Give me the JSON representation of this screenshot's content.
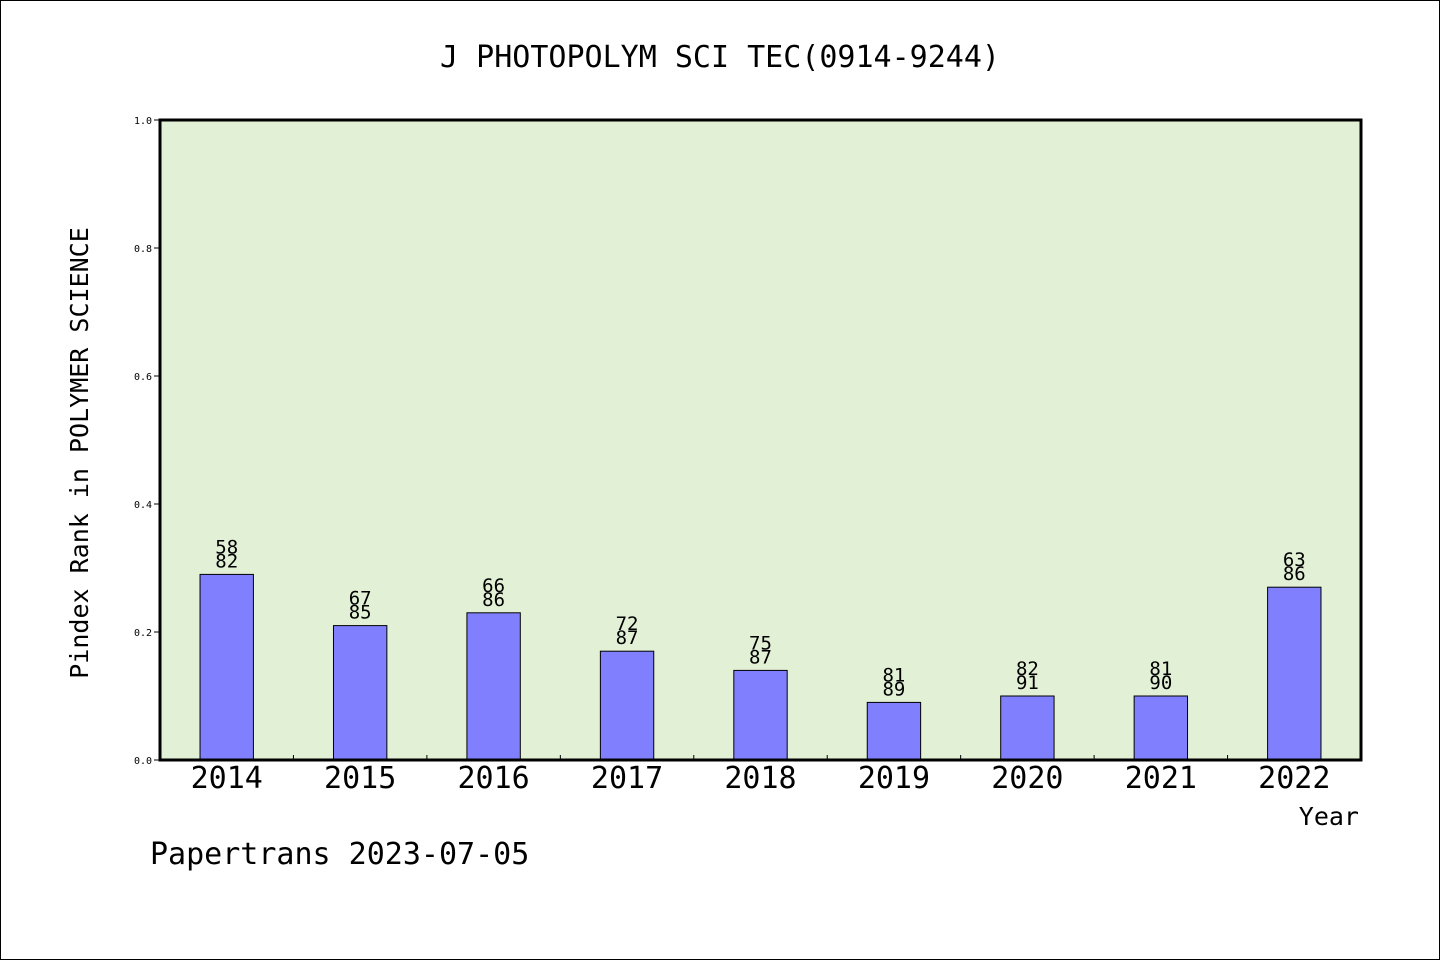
{
  "chart_data": {
    "type": "bar",
    "title": "J PHOTOPOLYM SCI TEC(0914-9244)",
    "xlabel": "Year",
    "ylabel": "Pindex Rank in POLYMER SCIENCE",
    "ylim": [
      0,
      1.0
    ],
    "yticks": [
      "0.0",
      "0.2",
      "0.4",
      "0.6",
      "0.8",
      "1.0"
    ],
    "categories": [
      "2014",
      "2015",
      "2016",
      "2017",
      "2018",
      "2019",
      "2020",
      "2021",
      "2022"
    ],
    "values": [
      0.29,
      0.21,
      0.23,
      0.17,
      0.14,
      0.09,
      0.1,
      0.1,
      0.27
    ],
    "rank": [
      "58",
      "67",
      "66",
      "72",
      "75",
      "81",
      "82",
      "81",
      "63"
    ],
    "total": [
      "82",
      "85",
      "86",
      "87",
      "87",
      "89",
      "91",
      "90",
      "86"
    ],
    "grid": false,
    "bar_color": "#8080ff",
    "plot_background": "#e2f0d6"
  },
  "footer": "Papertrans 2023-07-05"
}
